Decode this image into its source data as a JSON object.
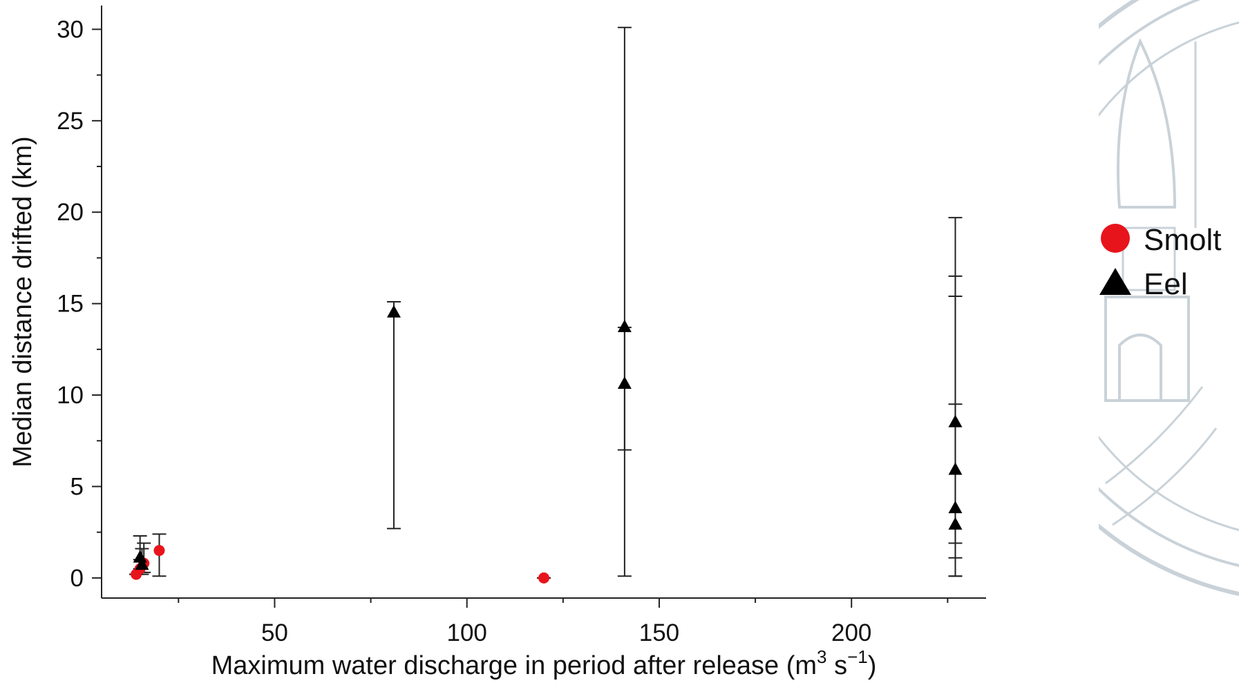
{
  "chart_data": {
    "type": "scatter",
    "title": "",
    "xlabel_main": "Maximum water discharge in period after release (m",
    "xlabel_sup1": "3",
    "xlabel_mid": " s",
    "xlabel_sup2": "−1",
    "xlabel_end": ")",
    "ylabel": "Median distance drifted (km)",
    "xlim": [
      5,
      235
    ],
    "ylim": [
      -1.1,
      31.3
    ],
    "x_ticks": [
      50,
      100,
      150,
      200
    ],
    "x_minor_ticks": [
      25,
      75,
      125,
      175,
      225
    ],
    "y_ticks": [
      0,
      5,
      10,
      15,
      20,
      25,
      30
    ],
    "y_minor_ticks": [
      2.5,
      7.5,
      12.5,
      17.5,
      22.5,
      27.5
    ],
    "legend_position": "right",
    "series": [
      {
        "name": "Smolt",
        "marker": "circle",
        "color": "#e8141b",
        "points": [
          {
            "x": 14,
            "y": 0.2,
            "low": 0.2,
            "high": 0.2
          },
          {
            "x": 15,
            "y": 0.5,
            "low": 0.3,
            "high": 1.0
          },
          {
            "x": 16,
            "y": 0.8,
            "low": 0.3,
            "high": 1.9
          },
          {
            "x": 20,
            "y": 1.5,
            "low": 0.1,
            "high": 2.4
          },
          {
            "x": 120,
            "y": 0.0,
            "low": 0.0,
            "high": 0.0
          }
        ]
      },
      {
        "name": "Eel",
        "marker": "triangle",
        "color": "#000000",
        "points": [
          {
            "x": 15,
            "y": 1.1,
            "low": 0.5,
            "high": 2.3
          },
          {
            "x": 15.5,
            "y": 0.7,
            "low": 0.2,
            "high": 1.6
          },
          {
            "x": 81,
            "y": 14.5,
            "low": 2.7,
            "high": 15.1
          },
          {
            "x": 141,
            "y": 13.7,
            "low": 0.1,
            "high": 30.1
          },
          {
            "x": 141,
            "y": 10.6,
            "low": 7.0,
            "high": 13.7
          },
          {
            "x": 227,
            "y": 8.5,
            "low": 1.9,
            "high": 16.5
          },
          {
            "x": 227,
            "y": 5.9,
            "low": 1.1,
            "high": 15.4
          },
          {
            "x": 227,
            "y": 3.8,
            "low": 0.1,
            "high": 19.7
          },
          {
            "x": 227,
            "y": 2.9,
            "low": 0.1,
            "high": 9.5
          }
        ]
      }
    ]
  }
}
